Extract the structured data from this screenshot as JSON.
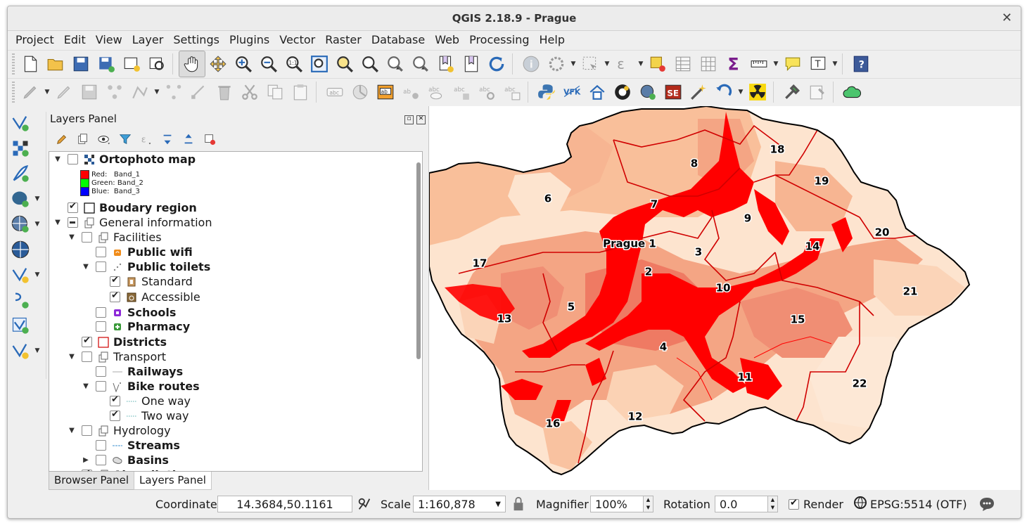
{
  "window": {
    "title": "QGIS 2.18.9 - Prague",
    "close_glyph": "✕"
  },
  "menubar": [
    "Project",
    "Edit",
    "View",
    "Layer",
    "Settings",
    "Plugins",
    "Vector",
    "Raster",
    "Database",
    "Web",
    "Processing",
    "Help"
  ],
  "layers_panel": {
    "title": "Layers Panel",
    "tabs": [
      {
        "label": "Browser Panel",
        "active": false
      },
      {
        "label": "Layers Panel",
        "active": true
      }
    ],
    "legend_bands": [
      {
        "label": "Red:   Band_1",
        "color": "#ff0000"
      },
      {
        "label": "Green: Band_2",
        "color": "#00ff00"
      },
      {
        "label": "Blue:  Band_3",
        "color": "#0000ff"
      }
    ],
    "layers": [
      {
        "label": "Ortophoto map",
        "bold": true,
        "expanded": true,
        "checked": "none",
        "icon": "raster-icon"
      },
      {
        "label": "Boudary region",
        "bold": true,
        "checked": "checked",
        "icon": "polygon-icon"
      },
      {
        "label": "General information",
        "bold": false,
        "expanded": true,
        "checked": "partial",
        "icon": "group-icon"
      },
      {
        "label": "Facilities",
        "bold": false,
        "expanded": true,
        "checked": "none",
        "icon": "group-icon"
      },
      {
        "label": "Public wifi",
        "bold": true,
        "checked": "none",
        "icon": "wifi-point-icon"
      },
      {
        "label": "Public toilets",
        "bold": true,
        "expanded": true,
        "checked": "none",
        "icon": "point-rule-icon"
      },
      {
        "label": "Standard",
        "bold": false,
        "checked": "checked",
        "icon": "toilet-icon"
      },
      {
        "label": "Accessible",
        "bold": false,
        "checked": "checked",
        "icon": "accessible-toilet-icon"
      },
      {
        "label": "Schools",
        "bold": true,
        "checked": "none",
        "icon": "school-icon"
      },
      {
        "label": "Pharmacy",
        "bold": true,
        "checked": "none",
        "icon": "pharmacy-icon"
      },
      {
        "label": "Districts",
        "bold": true,
        "checked": "checked",
        "icon": "district-polygon-icon"
      },
      {
        "label": "Transport",
        "bold": false,
        "expanded": true,
        "checked": "none",
        "icon": "group-icon"
      },
      {
        "label": "Railways",
        "bold": true,
        "checked": "none",
        "icon": "line-icon"
      },
      {
        "label": "Bike routes",
        "bold": true,
        "expanded": true,
        "checked": "none",
        "icon": "line-rule-icon"
      },
      {
        "label": "One way",
        "bold": false,
        "checked": "checked",
        "icon": "dotted-line-icon"
      },
      {
        "label": "Two way",
        "bold": false,
        "checked": "checked",
        "icon": "dotted-line-icon"
      },
      {
        "label": "Hydrology",
        "bold": false,
        "expanded": true,
        "checked": "none",
        "icon": "group-icon"
      },
      {
        "label": "Streams",
        "bold": true,
        "checked": "none",
        "icon": "stream-icon"
      },
      {
        "label": "Basins",
        "bold": true,
        "expanded": false,
        "checked": "none",
        "icon": "basin-icon"
      },
      {
        "label": "Air pollution",
        "bold": true,
        "expanded": false,
        "checked": "checked",
        "icon": "group-icon"
      }
    ]
  },
  "map": {
    "labels": [
      "Prague 1",
      "2",
      "3",
      "4",
      "5",
      "6",
      "7",
      "8",
      "9",
      "10",
      "11",
      "12",
      "13",
      "14",
      "15",
      "16",
      "17",
      "18",
      "19",
      "20",
      "21",
      "22"
    ],
    "colors": {
      "lightest": "#fde7d3",
      "light": "#fbcfae",
      "mid": "#f4a081",
      "dark": "#ee6b55",
      "red": "#ff0000",
      "border_red": "#d00000",
      "boundary": "#000000"
    }
  },
  "statusbar": {
    "coordinate_label": "Coordinate",
    "coordinate_value": "14.3684,50.1161",
    "scale_label": "Scale",
    "scale_value": "1:160,878",
    "magnifier_label": "Magnifier",
    "magnifier_value": "100%",
    "rotation_label": "Rotation",
    "rotation_value": "0.0",
    "render_label": "Render",
    "crs": "EPSG:5514 (OTF)"
  }
}
